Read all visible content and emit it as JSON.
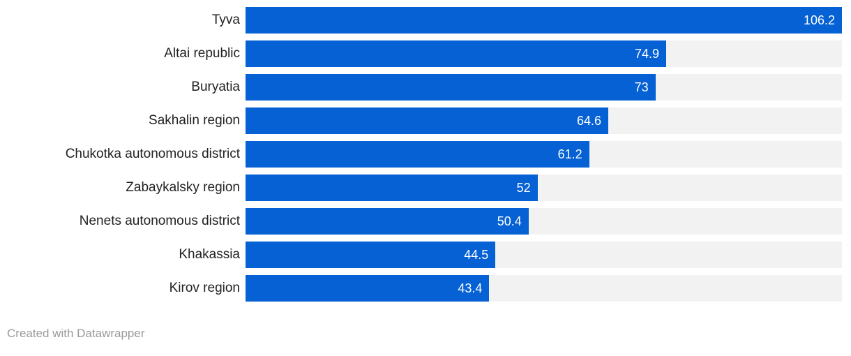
{
  "chart": {
    "footer": "Created with Datawrapper"
  },
  "colors": {
    "background": "#FFFFFF",
    "bar": "#0561D4",
    "track": "#F2F2F2",
    "category_label": "#222222",
    "value_label": "#FFFFFF",
    "footer_text": "#999999"
  },
  "chart_data": {
    "type": "bar",
    "orientation": "horizontal",
    "title": "",
    "xlabel": "",
    "ylabel": "",
    "categories": [
      "Tyva",
      "Altai republic",
      "Buryatia",
      "Sakhalin region",
      "Chukotka autonomous district",
      "Zabaykalsky region",
      "Nenets autonomous district",
      "Khakassia",
      "Kirov region"
    ],
    "values": [
      106.2,
      74.9,
      73,
      64.6,
      61.2,
      52,
      50.4,
      44.5,
      43.4
    ],
    "value_labels": [
      "106.2",
      "74.9",
      "73",
      "64.6",
      "61.2",
      "52",
      "50.4",
      "44.5",
      "43.4"
    ],
    "xlim": [
      0,
      106.2
    ],
    "grid": false,
    "legend": false,
    "value_label_position": "inside-end",
    "background_track": true
  }
}
